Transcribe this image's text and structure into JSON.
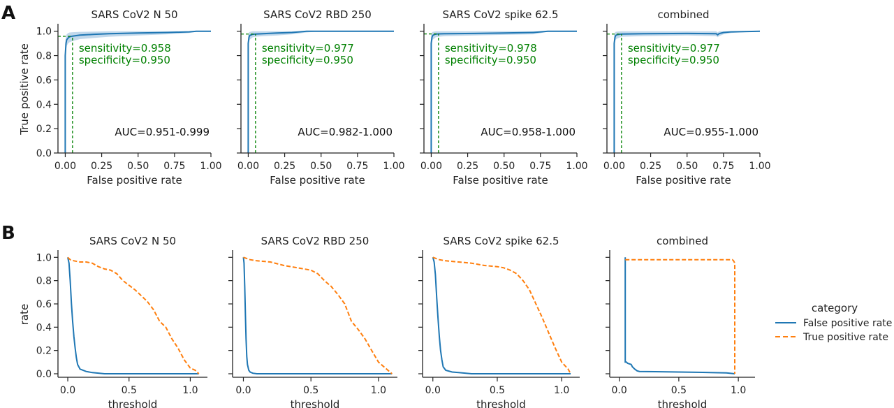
{
  "panel_labels": [
    "A",
    "B"
  ],
  "colors": {
    "fpr": "#1f77b4",
    "tpr": "#ff7f0e",
    "annot": "#008000",
    "band": "#a6c8e3"
  },
  "legend": {
    "title": "category",
    "items": [
      "False positive rate",
      "True positive rate"
    ]
  },
  "chart_data": [
    {
      "type": "line",
      "panel": "A",
      "title": "SARS CoV2 N 50",
      "xlabel": "False positive rate",
      "ylabel": "True positive rate",
      "xlim": [
        -0.05,
        1.0
      ],
      "ylim": [
        0,
        1.05
      ],
      "xticks": [
        "0.00",
        "0.25",
        "0.50",
        "0.75",
        "1.00"
      ],
      "yticks": [
        "0.0",
        "0.2",
        "0.4",
        "0.6",
        "0.8",
        "1.0"
      ],
      "roc_x": [
        0,
        0,
        0.005,
        0.01,
        0.02,
        0.03,
        0.05,
        0.1,
        0.2,
        0.3,
        0.5,
        0.7,
        0.85,
        0.9,
        1.0
      ],
      "roc_y": [
        0,
        0.8,
        0.9,
        0.93,
        0.945,
        0.955,
        0.96,
        0.968,
        0.975,
        0.98,
        0.985,
        0.99,
        0.995,
        1.0,
        1.0
      ],
      "band_upper": [
        0,
        0.9,
        0.96,
        0.975,
        0.985,
        0.99,
        0.992,
        0.995,
        0.997,
        1.0,
        1.0,
        1.0,
        1.0,
        1.0,
        1.0
      ],
      "band_lower": [
        0,
        0.7,
        0.84,
        0.88,
        0.9,
        0.91,
        0.92,
        0.935,
        0.945,
        0.955,
        0.965,
        0.975,
        0.985,
        0.995,
        1.0
      ],
      "op_fpr": 0.05,
      "op_tpr": 0.958,
      "sensitivity": "sensitivity=0.958",
      "specificity": "specificity=0.950",
      "auc": "AUC=0.951-0.999"
    },
    {
      "type": "line",
      "panel": "A",
      "title": "SARS CoV2 RBD 250",
      "xlabel": "False positive rate",
      "ylabel": "",
      "xlim": [
        -0.05,
        1.0
      ],
      "ylim": [
        0,
        1.05
      ],
      "xticks": [
        "0.00",
        "0.25",
        "0.50",
        "0.75",
        "1.00"
      ],
      "yticks": [
        "",
        "",
        "",
        "",
        "",
        ""
      ],
      "roc_x": [
        0,
        0,
        0.005,
        0.01,
        0.02,
        0.03,
        0.05,
        0.1,
        0.2,
        0.3,
        0.4,
        0.5,
        1.0
      ],
      "roc_y": [
        0,
        0.9,
        0.95,
        0.965,
        0.97,
        0.975,
        0.977,
        0.98,
        0.985,
        0.99,
        1.0,
        1.0,
        1.0
      ],
      "band_upper": [
        0,
        0.97,
        0.99,
        0.995,
        0.997,
        1.0,
        1.0,
        1.0,
        1.0,
        1.0,
        1.0,
        1.0,
        1.0
      ],
      "band_lower": [
        0,
        0.83,
        0.91,
        0.93,
        0.94,
        0.95,
        0.955,
        0.96,
        0.965,
        0.975,
        0.99,
        1.0,
        1.0
      ],
      "op_fpr": 0.05,
      "op_tpr": 0.977,
      "sensitivity": "sensitivity=0.977",
      "specificity": "specificity=0.950",
      "auc": "AUC=0.982-1.000"
    },
    {
      "type": "line",
      "panel": "A",
      "title": "SARS CoV2 spike 62.5",
      "xlabel": "False positive rate",
      "ylabel": "",
      "xlim": [
        -0.05,
        1.0
      ],
      "ylim": [
        0,
        1.05
      ],
      "xticks": [
        "0.00",
        "0.25",
        "0.50",
        "0.75",
        "1.00"
      ],
      "yticks": [
        "",
        "",
        "",
        "",
        "",
        ""
      ],
      "roc_x": [
        0,
        0,
        0.005,
        0.01,
        0.02,
        0.03,
        0.05,
        0.1,
        0.3,
        0.5,
        0.7,
        0.8,
        1.0
      ],
      "roc_y": [
        0,
        0.9,
        0.95,
        0.965,
        0.972,
        0.976,
        0.978,
        0.98,
        0.982,
        0.985,
        0.99,
        1.0,
        1.0
      ],
      "band_upper": [
        0,
        0.97,
        0.99,
        0.995,
        0.997,
        1.0,
        1.0,
        1.0,
        1.0,
        1.0,
        1.0,
        1.0,
        1.0
      ],
      "band_lower": [
        0,
        0.83,
        0.91,
        0.93,
        0.94,
        0.95,
        0.955,
        0.96,
        0.965,
        0.97,
        0.975,
        0.995,
        1.0
      ],
      "op_fpr": 0.05,
      "op_tpr": 0.978,
      "sensitivity": "sensitivity=0.978",
      "specificity": "specificity=0.950",
      "auc": "AUC=0.958-1.000"
    },
    {
      "type": "line",
      "panel": "A",
      "title": "combined",
      "xlabel": "False positive rate",
      "ylabel": "",
      "xlim": [
        -0.05,
        1.0
      ],
      "ylim": [
        0,
        1.05
      ],
      "xticks": [
        "0.00",
        "0.25",
        "0.50",
        "0.75",
        "1.00"
      ],
      "yticks": [
        "",
        "",
        "",
        "",
        "",
        ""
      ],
      "roc_x": [
        0,
        0,
        0.005,
        0.01,
        0.02,
        0.05,
        0.2,
        0.5,
        0.7,
        0.71,
        0.72,
        0.75,
        0.8,
        1.0
      ],
      "roc_y": [
        0,
        0.9,
        0.95,
        0.965,
        0.972,
        0.977,
        0.98,
        0.982,
        0.98,
        0.97,
        0.98,
        0.99,
        0.995,
        1.0
      ],
      "band_upper": [
        0,
        0.97,
        0.99,
        0.995,
        0.997,
        1.0,
        1.0,
        1.0,
        1.0,
        0.99,
        1.0,
        1.0,
        1.0,
        1.0
      ],
      "band_lower": [
        0,
        0.83,
        0.91,
        0.93,
        0.94,
        0.955,
        0.96,
        0.965,
        0.96,
        0.95,
        0.96,
        0.975,
        0.985,
        1.0
      ],
      "op_fpr": 0.05,
      "op_tpr": 0.977,
      "sensitivity": "sensitivity=0.977",
      "specificity": "specificity=0.950",
      "auc": "AUC=0.955-1.000"
    },
    {
      "type": "line",
      "panel": "B",
      "title": "SARS CoV2 N 50",
      "xlabel": "threshold",
      "ylabel": "rate",
      "xlim": [
        -0.08,
        1.14
      ],
      "ylim": [
        -0.03,
        1.05
      ],
      "xtick_values": [
        0.0,
        0.5,
        1.0
      ],
      "xticks": [
        "0.0",
        "0.5",
        "1.0"
      ],
      "yticks": [
        "0.0",
        "0.2",
        "0.4",
        "0.6",
        "0.8",
        "1.0"
      ],
      "series": [
        {
          "name": "False positive rate",
          "x": [
            0,
            0.01,
            0.02,
            0.03,
            0.04,
            0.05,
            0.06,
            0.07,
            0.08,
            0.1,
            0.15,
            0.2,
            0.3,
            0.5,
            1.07
          ],
          "y": [
            1.0,
            0.95,
            0.8,
            0.6,
            0.45,
            0.32,
            0.22,
            0.14,
            0.08,
            0.04,
            0.02,
            0.01,
            0.0,
            0.0,
            0.0
          ]
        },
        {
          "name": "True positive rate",
          "x": [
            0,
            0.02,
            0.05,
            0.1,
            0.15,
            0.2,
            0.25,
            0.3,
            0.35,
            0.4,
            0.45,
            0.5,
            0.55,
            0.6,
            0.65,
            0.7,
            0.75,
            0.8,
            0.85,
            0.9,
            0.95,
            1.0,
            1.04,
            1.07
          ],
          "y": [
            1.0,
            0.98,
            0.97,
            0.96,
            0.96,
            0.95,
            0.92,
            0.9,
            0.89,
            0.86,
            0.8,
            0.76,
            0.72,
            0.67,
            0.62,
            0.55,
            0.45,
            0.4,
            0.3,
            0.22,
            0.12,
            0.05,
            0.03,
            0.0
          ]
        }
      ]
    },
    {
      "type": "line",
      "panel": "B",
      "title": "SARS CoV2 RBD 250",
      "xlabel": "threshold",
      "ylabel": "",
      "xlim": [
        -0.08,
        1.14
      ],
      "ylim": [
        -0.03,
        1.05
      ],
      "xtick_values": [
        0.0,
        0.5,
        1.0
      ],
      "xticks": [
        "0.0",
        "0.5",
        "1.0"
      ],
      "yticks": [
        "",
        "",
        "",
        "",
        "",
        ""
      ],
      "series": [
        {
          "name": "False positive rate",
          "x": [
            0,
            0.005,
            0.01,
            0.015,
            0.02,
            0.025,
            0.03,
            0.04,
            0.05,
            0.07,
            0.1,
            0.2,
            1.1
          ],
          "y": [
            1.0,
            0.95,
            0.75,
            0.5,
            0.3,
            0.15,
            0.08,
            0.03,
            0.015,
            0.005,
            0.0,
            0.0,
            0.0
          ]
        },
        {
          "name": "True positive rate",
          "x": [
            0,
            0.05,
            0.1,
            0.2,
            0.3,
            0.4,
            0.45,
            0.5,
            0.55,
            0.6,
            0.65,
            0.7,
            0.75,
            0.8,
            0.85,
            0.9,
            0.95,
            1.0,
            1.05,
            1.1
          ],
          "y": [
            1.0,
            0.98,
            0.97,
            0.96,
            0.93,
            0.91,
            0.9,
            0.89,
            0.86,
            0.8,
            0.75,
            0.68,
            0.6,
            0.45,
            0.38,
            0.3,
            0.2,
            0.1,
            0.05,
            0.0
          ]
        }
      ]
    },
    {
      "type": "line",
      "panel": "B",
      "title": "SARS CoV2 spike 62.5",
      "xlabel": "threshold",
      "ylabel": "",
      "xlim": [
        -0.08,
        1.14
      ],
      "ylim": [
        -0.03,
        1.05
      ],
      "xtick_values": [
        0.0,
        0.5,
        1.0
      ],
      "xticks": [
        "0.0",
        "0.5",
        "1.0"
      ],
      "yticks": [
        "",
        "",
        "",
        "",
        "",
        ""
      ],
      "series": [
        {
          "name": "False positive rate",
          "x": [
            0,
            0.01,
            0.02,
            0.03,
            0.04,
            0.05,
            0.06,
            0.07,
            0.08,
            0.1,
            0.15,
            0.2,
            0.3,
            0.5,
            1.07
          ],
          "y": [
            1.0,
            0.96,
            0.85,
            0.65,
            0.48,
            0.32,
            0.2,
            0.12,
            0.06,
            0.03,
            0.015,
            0.01,
            0.0,
            0.0,
            0.0
          ]
        },
        {
          "name": "True positive rate",
          "x": [
            0,
            0.05,
            0.1,
            0.2,
            0.3,
            0.4,
            0.5,
            0.55,
            0.6,
            0.65,
            0.7,
            0.75,
            0.8,
            0.85,
            0.9,
            0.95,
            1.0,
            1.05,
            1.07
          ],
          "y": [
            1.0,
            0.98,
            0.97,
            0.96,
            0.95,
            0.93,
            0.92,
            0.91,
            0.89,
            0.86,
            0.8,
            0.72,
            0.6,
            0.48,
            0.35,
            0.22,
            0.1,
            0.04,
            0.0
          ]
        }
      ]
    },
    {
      "type": "line",
      "panel": "B",
      "title": "combined",
      "xlabel": "threshold",
      "ylabel": "",
      "xlim": [
        -0.08,
        1.14
      ],
      "ylim": [
        -0.03,
        1.05
      ],
      "xtick_values": [
        0.0,
        0.5,
        1.0
      ],
      "xticks": [
        "0.0",
        "0.5",
        "1.0"
      ],
      "yticks": [
        "",
        "",
        "",
        "",
        "",
        ""
      ],
      "series": [
        {
          "name": "False positive rate",
          "x": [
            0.05,
            0.05,
            0.06,
            0.07,
            0.1,
            0.11,
            0.13,
            0.15,
            0.17,
            0.3,
            0.5,
            0.7,
            0.9,
            0.97
          ],
          "y": [
            1.0,
            0.1,
            0.1,
            0.09,
            0.08,
            0.06,
            0.04,
            0.025,
            0.02,
            0.018,
            0.015,
            0.012,
            0.008,
            0.0
          ]
        },
        {
          "name": "True positive rate",
          "x": [
            0.05,
            0.06,
            0.5,
            0.95,
            0.96,
            0.97,
            0.97
          ],
          "y": [
            0.98,
            0.98,
            0.98,
            0.98,
            0.97,
            0.95,
            0.0
          ]
        }
      ]
    }
  ]
}
